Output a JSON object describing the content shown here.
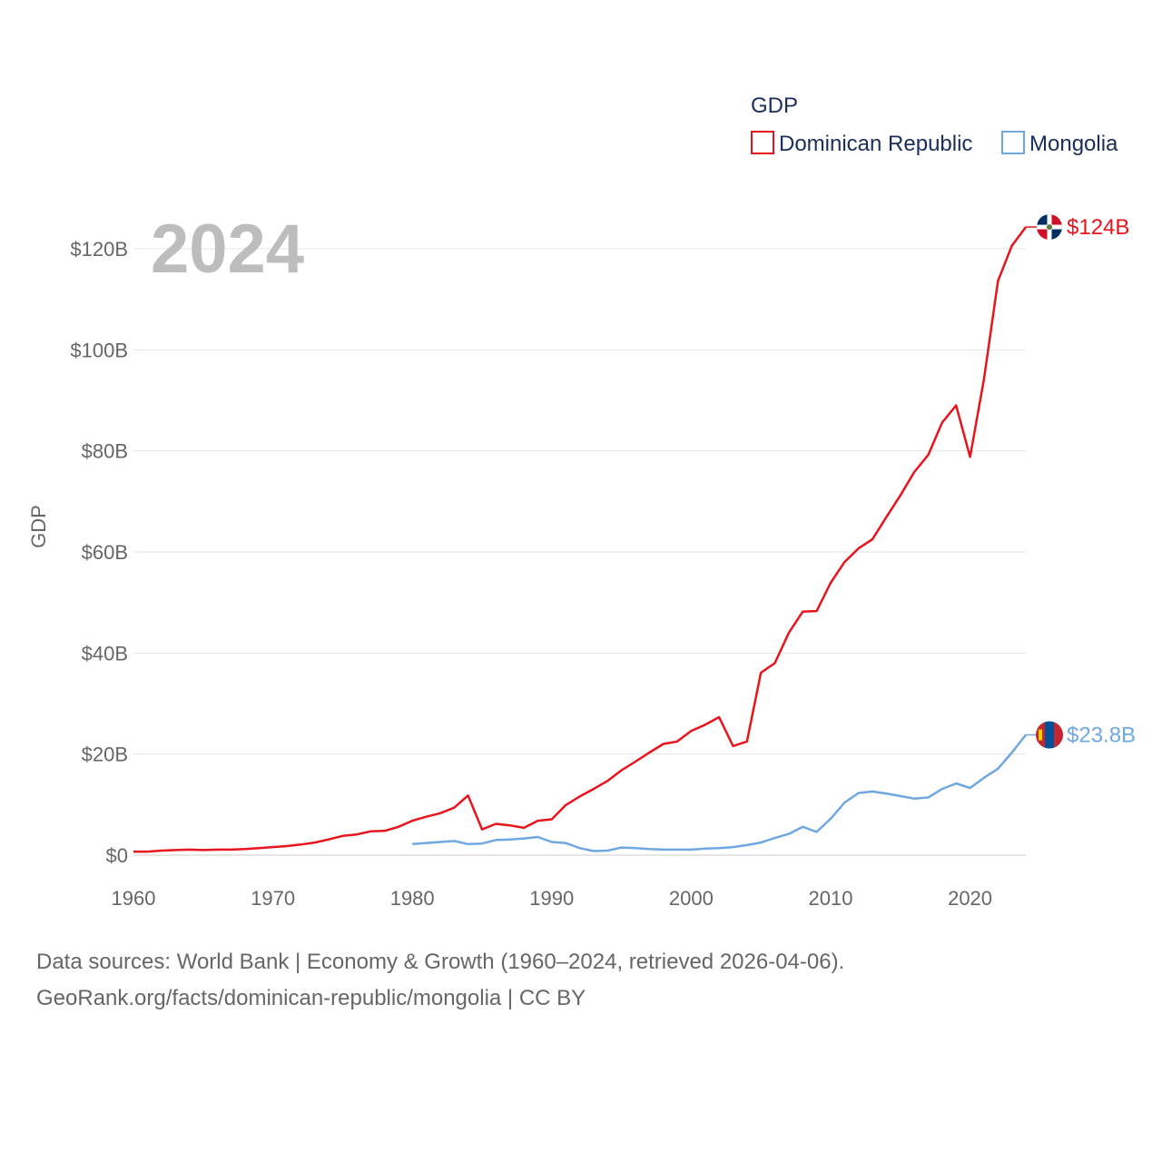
{
  "chart_data": {
    "type": "line",
    "title": "GDP",
    "year_label": "2024",
    "ylabel": "GDP",
    "xlabel": "",
    "xlim": [
      1960,
      2024
    ],
    "ylim": [
      0,
      130
    ],
    "y_ticks": [
      0,
      20,
      40,
      60,
      80,
      100,
      120
    ],
    "y_tick_labels": [
      "$0",
      "$20B",
      "$40B",
      "$60B",
      "$80B",
      "$100B",
      "$120B"
    ],
    "x_ticks": [
      1960,
      1970,
      1980,
      1990,
      2000,
      2010,
      2020
    ],
    "x_tick_labels": [
      "1960",
      "1970",
      "1980",
      "1990",
      "2000",
      "2010",
      "2020"
    ],
    "grid": true,
    "legend_position": "top-right",
    "series": [
      {
        "name": "Dominican Republic",
        "color": "#e8131b",
        "end_label": "$124B",
        "flag_icon": "dominican-republic-flag-icon",
        "x": [
          1960,
          1961,
          1962,
          1963,
          1964,
          1965,
          1966,
          1967,
          1968,
          1969,
          1970,
          1971,
          1972,
          1973,
          1974,
          1975,
          1976,
          1977,
          1978,
          1979,
          1980,
          1981,
          1982,
          1983,
          1984,
          1985,
          1986,
          1987,
          1988,
          1989,
          1990,
          1991,
          1992,
          1993,
          1994,
          1995,
          1996,
          1997,
          1998,
          1999,
          2000,
          2001,
          2002,
          2003,
          2004,
          2005,
          2006,
          2007,
          2008,
          2009,
          2010,
          2011,
          2012,
          2013,
          2014,
          2015,
          2016,
          2017,
          2018,
          2019,
          2020,
          2021,
          2022,
          2023,
          2024
        ],
        "values": [
          0.7,
          0.7,
          0.9,
          1.0,
          1.1,
          1.0,
          1.1,
          1.1,
          1.2,
          1.4,
          1.6,
          1.8,
          2.1,
          2.5,
          3.1,
          3.8,
          4.1,
          4.7,
          4.8,
          5.6,
          6.8,
          7.6,
          8.3,
          9.4,
          11.8,
          5.1,
          6.2,
          5.9,
          5.4,
          6.8,
          7.1,
          9.9,
          11.6,
          13.1,
          14.7,
          16.8,
          18.5,
          20.3,
          22.0,
          22.5,
          24.6,
          25.8,
          27.3,
          21.6,
          22.5,
          36.1,
          38.0,
          44.0,
          48.2,
          48.3,
          53.9,
          58.0,
          60.7,
          62.5,
          66.9,
          71.2,
          75.8,
          79.2,
          85.6,
          89.0,
          78.8,
          94.2,
          113.6,
          120.6,
          124.3
        ]
      },
      {
        "name": "Mongolia",
        "color": "#6fa8e0",
        "end_label": "$23.8B",
        "flag_icon": "mongolia-flag-icon",
        "x": [
          1980,
          1981,
          1982,
          1983,
          1984,
          1985,
          1986,
          1987,
          1988,
          1989,
          1990,
          1991,
          1992,
          1993,
          1994,
          1995,
          1996,
          1997,
          1998,
          1999,
          2000,
          2001,
          2002,
          2003,
          2004,
          2005,
          2006,
          2007,
          2008,
          2009,
          2010,
          2011,
          2012,
          2013,
          2014,
          2015,
          2016,
          2017,
          2018,
          2019,
          2020,
          2021,
          2022,
          2023,
          2024
        ],
        "values": [
          2.2,
          2.4,
          2.6,
          2.8,
          2.2,
          2.3,
          3.0,
          3.1,
          3.3,
          3.6,
          2.6,
          2.4,
          1.4,
          0.8,
          0.9,
          1.5,
          1.4,
          1.2,
          1.1,
          1.1,
          1.1,
          1.3,
          1.4,
          1.6,
          2.0,
          2.5,
          3.4,
          4.2,
          5.6,
          4.6,
          7.2,
          10.4,
          12.3,
          12.6,
          12.2,
          11.7,
          11.2,
          11.4,
          13.1,
          14.2,
          13.3,
          15.3,
          17.1,
          20.3,
          23.8
        ]
      }
    ]
  },
  "footer": {
    "line1": "Data sources: World Bank | Economy & Growth (1960–2024, retrieved 2026-04-06).",
    "line2": "GeoRank.org/facts/dominican-republic/mongolia | CC BY"
  }
}
